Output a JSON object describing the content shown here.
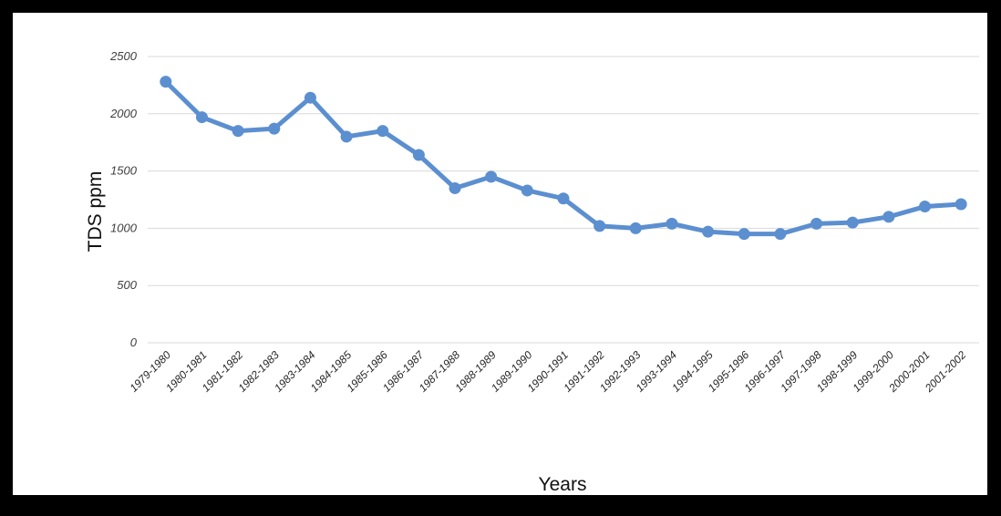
{
  "chart_data": {
    "type": "line",
    "xlabel": "Years",
    "ylabel": "TDS ppm",
    "ylim": [
      0,
      2500
    ],
    "yticks": [
      0,
      500,
      1000,
      1500,
      2000,
      2500
    ],
    "grid": true,
    "line_color": "#5b8fd0",
    "categories": [
      "1979-1980",
      "1980-1981",
      "1981-1982",
      "1982-1983",
      "1983-1984",
      "1984-1985",
      "1985-1986",
      "1986-1987",
      "1987-1988",
      "1988-1989",
      "1989-1990",
      "1990-1991",
      "1991-1992",
      "1992-1993",
      "1993-1994",
      "1994-1995",
      "1995-1996",
      "1996-1997",
      "1997-1998",
      "1998-1999",
      "1999-2000",
      "2000-2001",
      "2001-2002"
    ],
    "series": [
      {
        "values": [
          2280,
          1970,
          1850,
          1870,
          2140,
          1800,
          1850,
          1640,
          1350,
          1450,
          1330,
          1260,
          1020,
          1000,
          1040,
          970,
          950,
          950,
          1040,
          1050,
          1100,
          1190,
          1210
        ]
      }
    ]
  }
}
